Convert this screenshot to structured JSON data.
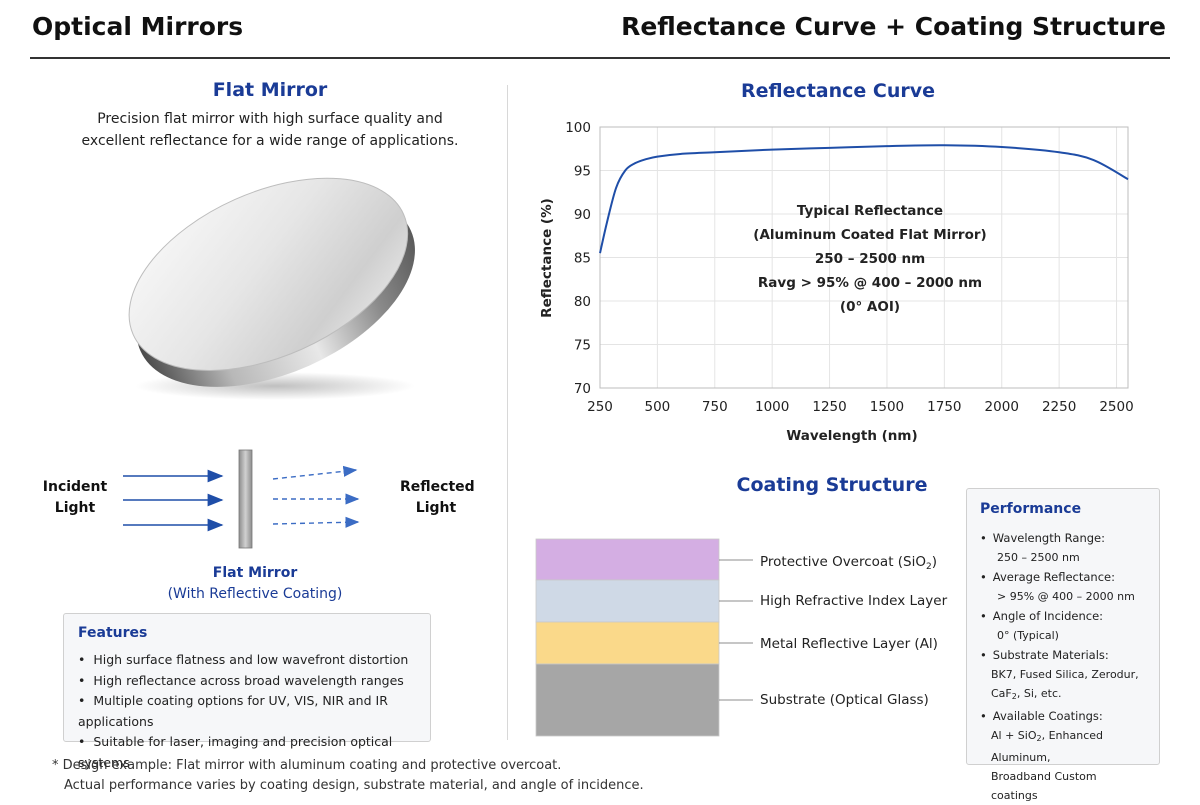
{
  "header": {
    "left_title": "Optical Mirrors",
    "right_title": "Reflectance Curve + Coating Structure"
  },
  "flat_mirror": {
    "title": "Flat Mirror",
    "description_line1": "Precision flat mirror with high surface quality and",
    "description_line2": "excellent reflectance for a wide range of applications.",
    "incident_label_1": "Incident",
    "incident_label_2": "Light",
    "reflected_label_1": "Reflected",
    "reflected_label_2": "Light",
    "caption_line1": "Flat Mirror",
    "caption_line2": "(With Reflective Coating)"
  },
  "features": {
    "title": "Features",
    "items": [
      "High surface flatness and low wavefront distortion",
      "High reflectance across broad wavelength ranges",
      "Multiple coating options for UV, VIS, NIR and IR applications",
      "Suitable for laser, imaging and precision optical systems"
    ]
  },
  "footnote": {
    "line1": "* Design example: Flat mirror with aluminum coating and protective overcoat.",
    "line2": "Actual performance varies by coating design, substrate material, and angle of incidence."
  },
  "reflectance": {
    "title": "Reflectance Curve",
    "annotation": [
      "Typical Reflectance",
      "(Aluminum Coated Flat Mirror)",
      "250 – 2500 nm",
      "Ravg > 95% @ 400 – 2000 nm",
      "(0° AOI)"
    ]
  },
  "chart_data": {
    "type": "line",
    "xlabel": "Wavelength (nm)",
    "ylabel": "Reflectance (%)",
    "xlim": [
      250,
      2550
    ],
    "ylim": [
      70,
      100
    ],
    "xticks": [
      250,
      500,
      750,
      1000,
      1250,
      1500,
      1750,
      2000,
      2250,
      2500
    ],
    "yticks": [
      70,
      75,
      80,
      85,
      90,
      95,
      100
    ],
    "grid": true,
    "color": "#1f4ea8",
    "x": [
      250,
      280,
      320,
      360,
      400,
      450,
      500,
      600,
      750,
      1000,
      1250,
      1500,
      1750,
      2000,
      2250,
      2400,
      2550
    ],
    "y": [
      85.5,
      89.0,
      93.0,
      95.0,
      95.8,
      96.3,
      96.6,
      96.9,
      97.1,
      97.4,
      97.6,
      97.8,
      97.9,
      97.7,
      97.1,
      96.2,
      94.0
    ]
  },
  "coating": {
    "title": "Coating Structure",
    "layers": [
      {
        "label": "Protective Overcoat (SiO",
        "sub": "2",
        "tail": ")",
        "color": "#d4aee3"
      },
      {
        "label": "High Refractive Index Layer",
        "sub": "",
        "tail": "",
        "color": "#cfd9e6"
      },
      {
        "label": "Metal Reflective Layer (Al)",
        "sub": "",
        "tail": "",
        "color": "#fad98a"
      },
      {
        "label": "Substrate (Optical Glass)",
        "sub": "",
        "tail": "",
        "color": "#a6a6a6"
      }
    ]
  },
  "performance": {
    "title": "Performance",
    "wavelength_label": "Wavelength Range:",
    "wavelength_value": "250 – 2500 nm",
    "avg_label": "Average Reflectance:",
    "avg_value": "> 95% @ 400 – 2000 nm",
    "aoi_label": "Angle of Incidence:",
    "aoi_value": "0° (Typical)",
    "substrate_label": "Substrate Materials:",
    "substrate_value_1": "BK7, Fused Silica, Zerodur,",
    "substrate_value_2_pre": "CaF",
    "substrate_value_2_sub": "2",
    "substrate_value_2_post": ", Si, etc.",
    "coatings_label": "Available Coatings:",
    "coatings_value_1_pre": "Al + SiO",
    "coatings_value_1_sub": "2",
    "coatings_value_1_post": ", Enhanced Aluminum,",
    "coatings_value_2": "Broadband Custom coatings"
  }
}
